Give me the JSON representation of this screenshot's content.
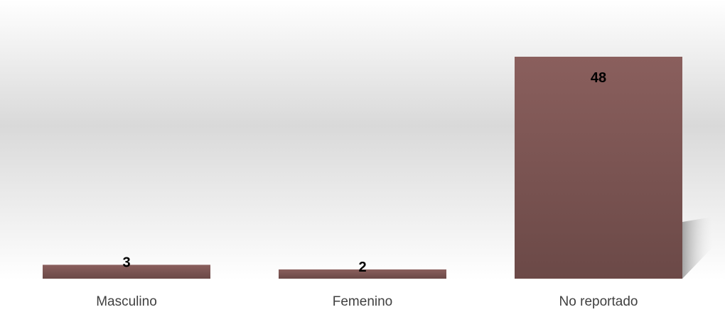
{
  "chart_data": {
    "type": "bar",
    "categories": [
      "Masculino",
      "Femenino",
      "No reportado"
    ],
    "values": [
      3,
      2,
      48
    ],
    "data_labels": [
      "3",
      "2",
      "48"
    ],
    "title": "",
    "xlabel": "",
    "ylabel": "",
    "ylim": [
      0,
      55
    ],
    "grid": false,
    "legend": "none",
    "colors": {
      "bar_top": "#8a5f5d",
      "bar_bottom": "#6b4947",
      "plot_bg_edge": "#ffffff",
      "plot_bg_mid": "#d9d9d9",
      "label_text": "#000000",
      "category_text": "#404040"
    }
  }
}
